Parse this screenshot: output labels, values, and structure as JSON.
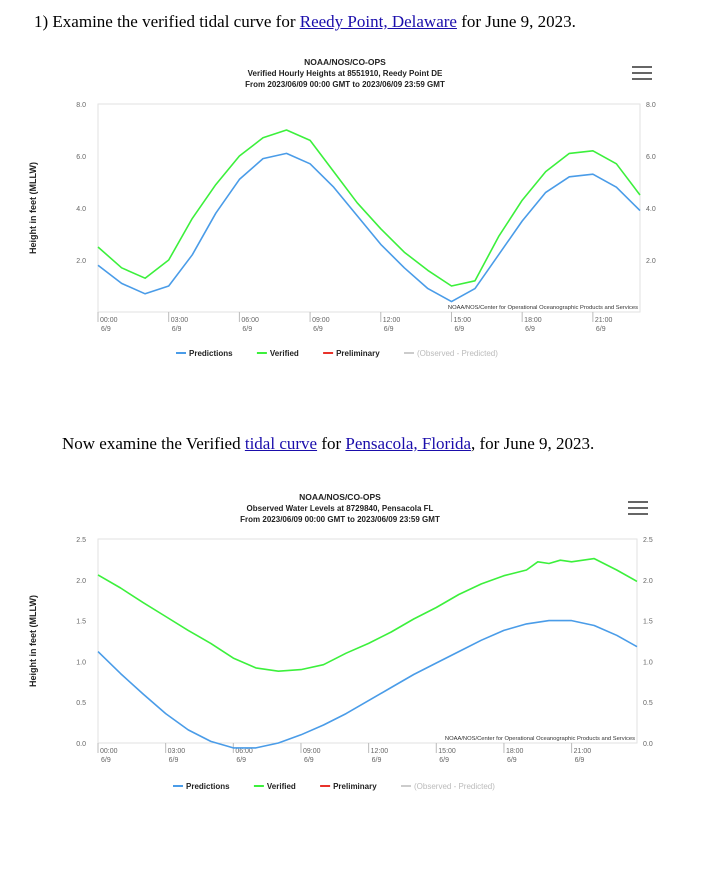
{
  "question1": {
    "prefix": "1) Examine the verified tidal curve for ",
    "link": "Reedy Point, Delaware",
    "suffix": " for June 9, 2023."
  },
  "question2": {
    "prefix": "Now examine the Verified ",
    "link1": "tidal curve",
    "middle": " for ",
    "link2": "Pensacola, Florida",
    "suffix": ", for June 9, 2023."
  },
  "colors": {
    "predictions": "#4a9ce8",
    "verified": "#3cf03c",
    "preliminary": "#e8322a",
    "legend_disabled": "#cccccc"
  },
  "chart_data": [
    {
      "type": "line",
      "title": "NOAA/NOS/CO-OPS",
      "subtitle1": "Verified Hourly Heights at 8551910, Reedy Point DE",
      "subtitle2": "From 2023/06/09 00:00 GMT to 2023/06/09 23:59 GMT",
      "ylabel": "Height in feet (MLLW)",
      "ylim": [
        0,
        8
      ],
      "yticks": [
        "2.0",
        "4.0",
        "6.0",
        "8.0"
      ],
      "ytick_values": [
        2,
        4,
        6,
        8
      ],
      "xlim": [
        0,
        23
      ],
      "xticks": [
        {
          "time": "00:00",
          "date": "6/9",
          "x": 0
        },
        {
          "time": "03:00",
          "date": "6/9",
          "x": 3
        },
        {
          "time": "06:00",
          "date": "6/9",
          "x": 6
        },
        {
          "time": "09:00",
          "date": "6/9",
          "x": 9
        },
        {
          "time": "12:00",
          "date": "6/9",
          "x": 12
        },
        {
          "time": "15:00",
          "date": "6/9",
          "x": 15
        },
        {
          "time": "18:00",
          "date": "6/9",
          "x": 18
        },
        {
          "time": "21:00",
          "date": "6/9",
          "x": 21
        }
      ],
      "credit": "NOAA/NOS/Center for Operational Oceanographic Products and Services",
      "series": [
        {
          "name": "Predictions",
          "x": [
            0,
            1,
            2,
            3,
            4,
            5,
            6,
            7,
            8,
            9,
            10,
            11,
            12,
            13,
            14,
            15,
            16,
            17,
            18,
            19,
            20,
            21,
            22,
            23
          ],
          "values": [
            1.8,
            1.1,
            0.7,
            1.0,
            2.2,
            3.8,
            5.1,
            5.9,
            6.1,
            5.7,
            4.8,
            3.7,
            2.6,
            1.7,
            0.9,
            0.4,
            0.9,
            2.2,
            3.5,
            4.6,
            5.2,
            5.3,
            4.8,
            3.9
          ]
        },
        {
          "name": "Verified",
          "x": [
            0,
            1,
            2,
            3,
            4,
            5,
            6,
            7,
            8,
            9,
            10,
            11,
            12,
            13,
            14,
            15,
            16,
            17,
            18,
            19,
            20,
            21,
            22,
            23
          ],
          "values": [
            2.5,
            1.7,
            1.3,
            2.0,
            3.6,
            4.9,
            6.0,
            6.7,
            7.0,
            6.6,
            5.4,
            4.2,
            3.2,
            2.3,
            1.6,
            1.0,
            1.2,
            2.9,
            4.3,
            5.4,
            6.1,
            6.2,
            5.7,
            4.5
          ]
        }
      ],
      "legend": [
        {
          "label": "Predictions",
          "color": "#4a9ce8"
        },
        {
          "label": "Verified",
          "color": "#3cf03c"
        },
        {
          "label": "Preliminary",
          "color": "#e8322a"
        },
        {
          "label": "(Observed - Predicted)",
          "color": "#cccccc"
        }
      ],
      "legend_placement": "bottom",
      "grid": false
    },
    {
      "type": "line",
      "title": "NOAA/NOS/CO-OPS",
      "subtitle1": "Observed Water Levels at 8729840, Pensacola FL",
      "subtitle2": "From 2023/06/09 00:00 GMT to 2023/06/09 23:59 GMT",
      "ylabel": "Height in feet (MLLW)",
      "ylim": [
        0,
        2.5
      ],
      "yticks": [
        "0.0",
        "0.5",
        "1.0",
        "1.5",
        "2.0",
        "2.5"
      ],
      "ytick_values": [
        0,
        0.5,
        1.0,
        1.5,
        2.0,
        2.5
      ],
      "xlim": [
        0,
        23.9
      ],
      "xticks": [
        {
          "time": "00:00",
          "date": "6/9",
          "x": 0
        },
        {
          "time": "03:00",
          "date": "6/9",
          "x": 3
        },
        {
          "time": "06:00",
          "date": "6/9",
          "x": 6
        },
        {
          "time": "09:00",
          "date": "6/9",
          "x": 9
        },
        {
          "time": "12:00",
          "date": "6/9",
          "x": 12
        },
        {
          "time": "15:00",
          "date": "6/9",
          "x": 15
        },
        {
          "time": "18:00",
          "date": "6/9",
          "x": 18
        },
        {
          "time": "21:00",
          "date": "6/9",
          "x": 21
        }
      ],
      "credit": "NOAA/NOS/Center for Operational Oceanographic Products and Services",
      "series": [
        {
          "name": "Predictions",
          "x": [
            0,
            1,
            2,
            3,
            4,
            5,
            6,
            7,
            8,
            9,
            10,
            11,
            12,
            13,
            14,
            15,
            16,
            17,
            18,
            19,
            20,
            21,
            22,
            23,
            23.9
          ],
          "values": [
            1.12,
            0.85,
            0.6,
            0.36,
            0.16,
            0.02,
            -0.06,
            -0.06,
            0.0,
            0.1,
            0.22,
            0.36,
            0.52,
            0.68,
            0.84,
            0.98,
            1.12,
            1.26,
            1.38,
            1.46,
            1.5,
            1.5,
            1.44,
            1.32,
            1.18
          ]
        },
        {
          "name": "Verified",
          "x": [
            0,
            1,
            2,
            3,
            4,
            5,
            6,
            7,
            8,
            9,
            10,
            11,
            12,
            13,
            14,
            15,
            16,
            17,
            18,
            19,
            19.5,
            20,
            20.5,
            21,
            22,
            23,
            23.9
          ],
          "values": [
            2.06,
            1.9,
            1.72,
            1.55,
            1.38,
            1.22,
            1.04,
            0.92,
            0.88,
            0.9,
            0.96,
            1.1,
            1.22,
            1.36,
            1.52,
            1.66,
            1.82,
            1.95,
            2.05,
            2.12,
            2.22,
            2.2,
            2.24,
            2.22,
            2.26,
            2.12,
            1.98
          ]
        }
      ],
      "legend": [
        {
          "label": "Predictions",
          "color": "#4a9ce8"
        },
        {
          "label": "Verified",
          "color": "#3cf03c"
        },
        {
          "label": "Preliminary",
          "color": "#e8322a"
        },
        {
          "label": "(Observed - Predicted)",
          "color": "#cccccc"
        }
      ],
      "legend_placement": "bottom",
      "grid": false
    }
  ]
}
